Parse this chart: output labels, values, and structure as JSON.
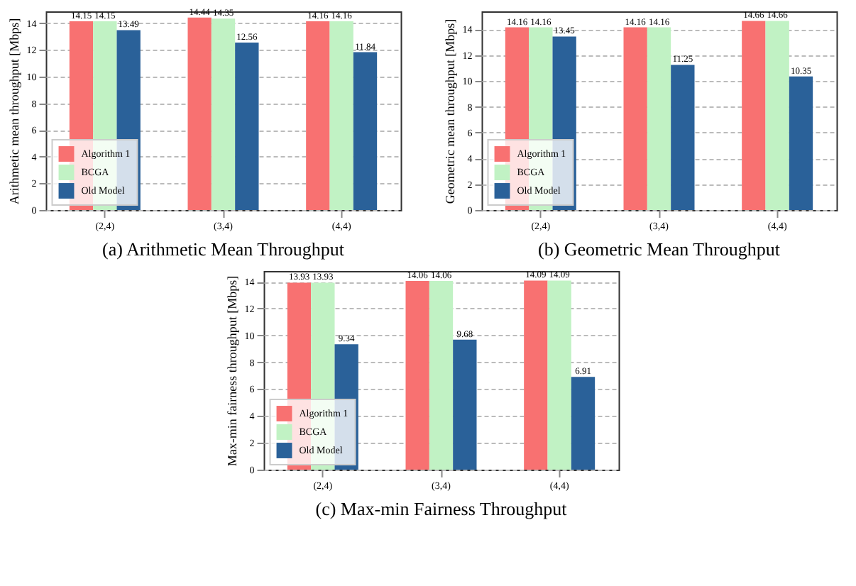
{
  "chart_data": [
    {
      "type": "bar",
      "title": "(a) Arithmetic Mean Throughput",
      "ylabel": "Arithmetic mean throughput [Mbps]",
      "categories": [
        "(2,4)",
        "(3,4)",
        "(4,4)"
      ],
      "series": [
        {
          "name": "Algorithm 1",
          "color": "#f87171",
          "values": [
            14.15,
            14.44,
            14.16
          ]
        },
        {
          "name": "BCGA",
          "color": "#c1f2c4",
          "values": [
            14.15,
            14.35,
            14.16
          ]
        },
        {
          "name": "Old Model",
          "color": "#2a6199",
          "values": [
            13.49,
            12.56,
            11.84
          ]
        }
      ],
      "ylim": [
        0,
        14.9
      ],
      "yticks": [
        0,
        2,
        4,
        6,
        8,
        10,
        12,
        14
      ],
      "grid": "y",
      "legend": "bottom left",
      "data_labels": true
    },
    {
      "type": "bar",
      "title": "(b) Geometric Mean Throughput",
      "ylabel": "Geometric mean throughput [Mbps]",
      "categories": [
        "(2,4)",
        "(3,4)",
        "(4,4)"
      ],
      "series": [
        {
          "name": "Algorithm 1",
          "color": "#f87171",
          "values": [
            14.16,
            14.16,
            14.66
          ]
        },
        {
          "name": "BCGA",
          "color": "#c1f2c4",
          "values": [
            14.16,
            14.16,
            14.66
          ]
        },
        {
          "name": "Old Model",
          "color": "#2a6199",
          "values": [
            13.45,
            11.25,
            10.35
          ]
        }
      ],
      "ylim": [
        0,
        15.4
      ],
      "yticks": [
        0,
        2,
        4,
        6,
        8,
        10,
        12,
        14
      ],
      "grid": "y",
      "legend": "bottom left",
      "data_labels": true
    },
    {
      "type": "bar",
      "title": "(c) Max-min Fairness Throughput",
      "ylabel": "Max-min fairness throughput [Mbps]",
      "categories": [
        "(2,4)",
        "(3,4)",
        "(4,4)"
      ],
      "series": [
        {
          "name": "Algorithm 1",
          "color": "#f87171",
          "values": [
            13.93,
            14.06,
            14.09
          ]
        },
        {
          "name": "BCGA",
          "color": "#c1f2c4",
          "values": [
            13.93,
            14.06,
            14.09
          ]
        },
        {
          "name": "Old Model",
          "color": "#2a6199",
          "values": [
            9.34,
            9.68,
            6.91
          ]
        }
      ],
      "ylim": [
        0,
        14.8
      ],
      "yticks": [
        0,
        2,
        4,
        6,
        8,
        10,
        12,
        14
      ],
      "grid": "y",
      "legend": "bottom left",
      "data_labels": true
    }
  ]
}
